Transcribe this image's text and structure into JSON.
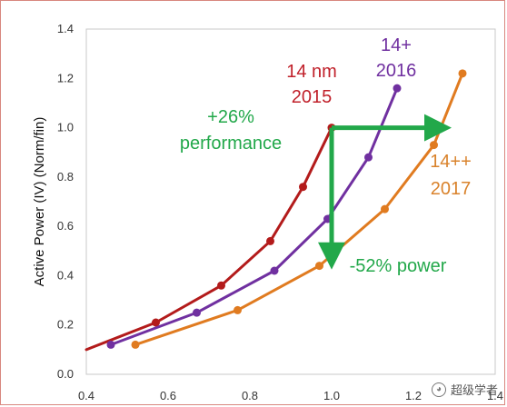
{
  "chart_data": {
    "type": "line",
    "title": "",
    "xlabel": "",
    "ylabel": "Active Power (IV) (Norm/fin)",
    "xlim": [
      0.4,
      1.4
    ],
    "ylim": [
      0.0,
      1.4
    ],
    "xticks": [
      "0.4",
      "0.6",
      "0.8",
      "1.0",
      "1.2",
      "1.4"
    ],
    "yticks": [
      "0.0",
      "0.2",
      "0.4",
      "0.6",
      "0.8",
      "1.0",
      "1.2",
      "1.4"
    ],
    "grid": false,
    "legend": "none",
    "series": [
      {
        "name": "14 nm 2015",
        "color": "#b31b1b",
        "x": [
          0.4,
          0.57,
          0.73,
          0.85,
          0.93,
          1.0
        ],
        "y": [
          0.1,
          0.21,
          0.36,
          0.54,
          0.76,
          1.0
        ]
      },
      {
        "name": "14+ 2016",
        "color": "#7030a0",
        "x": [
          0.46,
          0.67,
          0.86,
          0.99,
          1.09,
          1.16
        ],
        "y": [
          0.12,
          0.25,
          0.42,
          0.63,
          0.88,
          1.16
        ]
      },
      {
        "name": "14++ 2017",
        "color": "#e07b20",
        "x": [
          0.52,
          0.77,
          0.97,
          1.13,
          1.25,
          1.32
        ],
        "y": [
          0.12,
          0.26,
          0.44,
          0.67,
          0.93,
          1.22
        ]
      }
    ],
    "annotations": {
      "label_14nm_line1": "14 nm",
      "label_14nm_line2": "2015",
      "label_14p_line1": "14+",
      "label_14p_line2": "2016",
      "label_14pp_line1": "14++",
      "label_14pp_line2": "2017",
      "perf_line1": "+26%",
      "perf_line2": "performance",
      "power": "-52% power",
      "arrow_color": "#22a84a",
      "perf_arrow": {
        "from": [
          1.0,
          1.0
        ],
        "to": [
          1.26,
          1.0
        ]
      },
      "power_arrow": {
        "from": [
          1.0,
          1.0
        ],
        "to": [
          1.0,
          0.48
        ]
      }
    }
  },
  "watermark": {
    "icon": "wechat-official-account-icon",
    "text": "超级学者"
  }
}
